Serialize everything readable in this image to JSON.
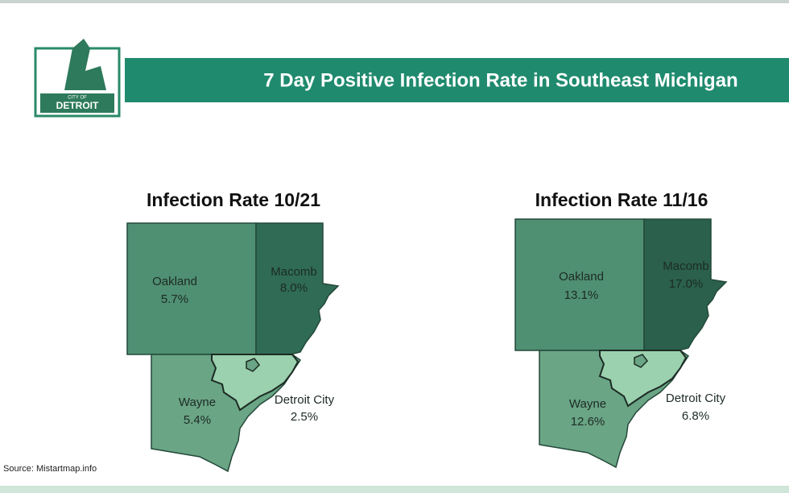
{
  "header": {
    "title": "7 Day Positive Infection Rate in Southeast Michigan"
  },
  "logo": {
    "line1": "CITY OF",
    "line2": "DETROIT"
  },
  "maps": [
    {
      "title": "Infection Rate 10/21",
      "regions": [
        {
          "name": "Oakland",
          "rate": "5.7%"
        },
        {
          "name": "Macomb",
          "rate": "8.0%"
        },
        {
          "name": "Wayne",
          "rate": "5.4%"
        },
        {
          "name": "Detroit City",
          "rate": "2.5%"
        }
      ]
    },
    {
      "title": "Infection Rate 11/16",
      "regions": [
        {
          "name": "Oakland",
          "rate": "13.1%"
        },
        {
          "name": "Macomb",
          "rate": "17.0%"
        },
        {
          "name": "Wayne",
          "rate": "12.6%"
        },
        {
          "name": "Detroit City",
          "rate": "6.8%"
        }
      ]
    }
  ],
  "footer": {
    "source": "Source:  Mistartmap.info"
  }
}
